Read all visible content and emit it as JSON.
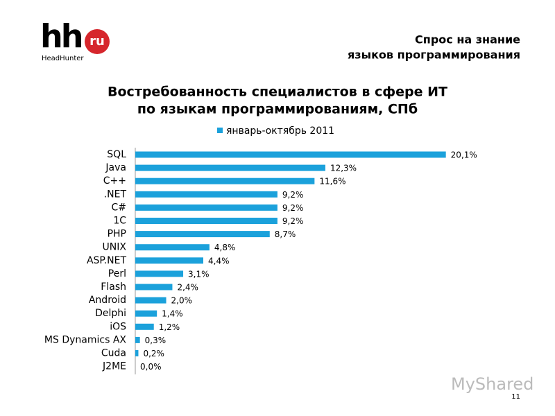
{
  "header": {
    "logo": "hh",
    "logo_badge": "ru",
    "brand": "HeadHunter",
    "subtitle": [
      "Спрос на знание",
      "языков программирования"
    ]
  },
  "chart_data": {
    "type": "bar",
    "orientation": "horizontal",
    "title": [
      "Востребованность специалистов в сфере ИТ",
      "по языкам программированиям, СПб"
    ],
    "categories": [
      "SQL",
      "Java",
      "C++",
      ".NET",
      "C#",
      "1C",
      "PHP",
      "UNIX",
      "ASP.NET",
      "Perl",
      "Flash",
      "Android",
      "Delphi",
      "iOS",
      "MS Dynamics AX",
      "Cuda",
      "J2ME"
    ],
    "series": [
      {
        "name": "январь-октябрь 2011",
        "color": "#1ba1db",
        "values": [
          20.1,
          12.3,
          11.6,
          9.2,
          9.2,
          9.2,
          8.7,
          4.8,
          4.4,
          3.1,
          2.4,
          2.0,
          1.4,
          1.2,
          0.3,
          0.2,
          0.0
        ],
        "value_labels": [
          "20,1%",
          "12,3%",
          "11,6%",
          "9,2%",
          "9,2%",
          "9,2%",
          "8,7%",
          "4,8%",
          "4,4%",
          "3,1%",
          "2,4%",
          "2,0%",
          "1,4%",
          "1,2%",
          "0,3%",
          "0,2%",
          "0,0%"
        ]
      }
    ],
    "xlim": [
      0,
      22
    ],
    "legend": "top"
  },
  "footer": {
    "watermark": "MyShared",
    "page_number": "11"
  }
}
